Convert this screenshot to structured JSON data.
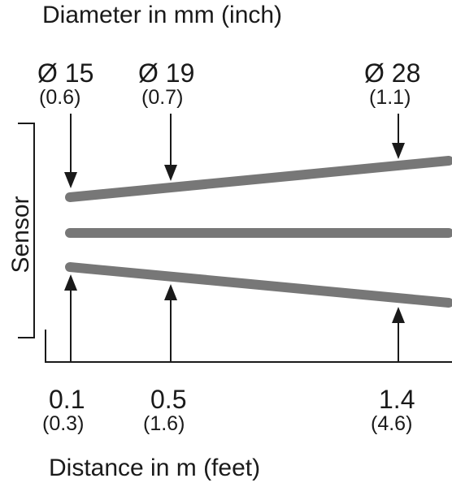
{
  "title": "Diameter in mm (inch)",
  "sensor_label": "Sensor",
  "footer": "Distance in m (feet)",
  "diameters": [
    {
      "main": "Ø 15",
      "sub": "(0.6)"
    },
    {
      "main": "Ø 19",
      "sub": "(0.7)"
    },
    {
      "main": "Ø 28",
      "sub": "(1.1)"
    }
  ],
  "distances": [
    {
      "main": "0.1",
      "sub": "(0.3)"
    },
    {
      "main": "0.5",
      "sub": "(1.6)"
    },
    {
      "main": "1.4",
      "sub": "(4.6)"
    }
  ],
  "colors": {
    "beam": "#777777",
    "ink": "#1a1a1a"
  }
}
